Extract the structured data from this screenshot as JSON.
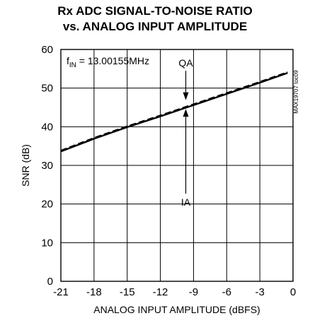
{
  "chart_data": {
    "type": "line",
    "title": [
      "Rx ADC SIGNAL-TO-NOISE RATIO",
      "vs. ANALOG INPUT AMPLITUDE"
    ],
    "xlabel": "ANALOG INPUT AMPLITUDE (dBFS)",
    "ylabel": "SNR (dB)",
    "xlim": [
      -21,
      0
    ],
    "ylim": [
      0,
      60
    ],
    "xticks": [
      -21,
      -18,
      -15,
      -12,
      -9,
      -6,
      -3,
      0
    ],
    "yticks": [
      0,
      10,
      20,
      30,
      40,
      50,
      60
    ],
    "grid": true,
    "legend": "none",
    "condition": {
      "prefix": "f",
      "subscript": "IN",
      "suffix": " = 13.00155MHz"
    },
    "part_id": "MAX19707 toc09",
    "series": [
      {
        "name": "QA",
        "style": "dashed",
        "x": [
          -21,
          -18,
          -15,
          -12,
          -9,
          -6,
          -3,
          -0.5
        ],
        "y": [
          33.8,
          37.1,
          40.1,
          42.9,
          45.8,
          48.7,
          51.6,
          54.1
        ]
      },
      {
        "name": "IA",
        "style": "solid",
        "x": [
          -21,
          -18,
          -15,
          -12,
          -9,
          -6,
          -3,
          -0.5
        ],
        "y": [
          33.6,
          36.9,
          39.9,
          42.7,
          45.6,
          48.5,
          51.4,
          53.9
        ]
      }
    ],
    "annotations": [
      {
        "text": "QA",
        "x": -9.7,
        "y": 56.5,
        "arrow_to_y": 46.9
      },
      {
        "text": "IA",
        "x": -9.7,
        "y": 20.5,
        "arrow_to_y": 44.6
      }
    ]
  }
}
